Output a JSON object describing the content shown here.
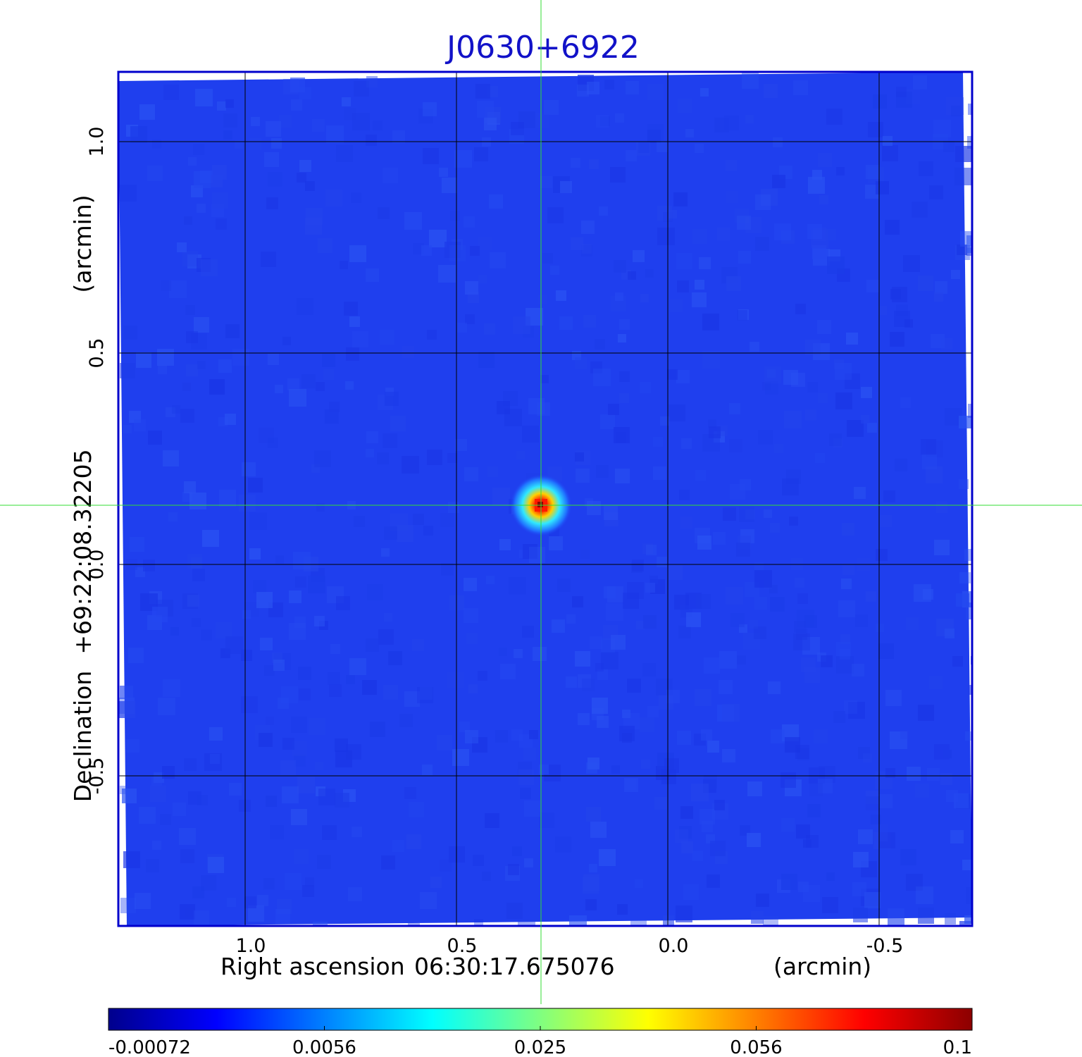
{
  "chart_data": {
    "type": "heatmap",
    "title": "J0630+6922",
    "xlabel": {
      "prefix": "Right ascension",
      "reference": "06:30:17.675076",
      "unit": "(arcmin)"
    },
    "ylabel": {
      "prefix": "Declination",
      "reference": "+69:22:08.32205",
      "unit": "(arcmin)"
    },
    "x_ticks": [
      {
        "value": 1.0,
        "label": "1.0"
      },
      {
        "value": 0.5,
        "label": "0.5"
      },
      {
        "value": 0.0,
        "label": "0.0"
      },
      {
        "value": -0.5,
        "label": "-0.5"
      }
    ],
    "y_ticks": [
      {
        "value": 1.0,
        "label": "1.0"
      },
      {
        "value": 0.5,
        "label": "0.5"
      },
      {
        "value": 0.0,
        "label": "0.0"
      },
      {
        "value": -0.5,
        "label": "-0.5"
      }
    ],
    "xlim": [
      1.3,
      -0.72
    ],
    "ylim": [
      -0.855,
      1.165
    ],
    "grid": true,
    "crosshair": {
      "x": 0.3,
      "y": 0.14,
      "color": "#33dd33"
    },
    "source": {
      "x": 0.3,
      "y": 0.14,
      "peak": 0.1
    },
    "colorbar": {
      "placement": "bottom",
      "ticks": [
        {
          "value": -0.00072,
          "label": "-0.00072"
        },
        {
          "value": 0.0056,
          "label": "0.0056"
        },
        {
          "value": 0.025,
          "label": "0.025"
        },
        {
          "value": 0.056,
          "label": "0.056"
        },
        {
          "value": 0.1,
          "label": "0.1"
        }
      ],
      "colors": [
        "#00008c",
        "#0000ff",
        "#0080ff",
        "#00ffff",
        "#80ff80",
        "#ffff00",
        "#ff8000",
        "#ff0000",
        "#8c0000"
      ]
    },
    "colors": {
      "background_field": "#1f3fee",
      "frame": "#0000cc",
      "title": "#1212c8"
    }
  }
}
